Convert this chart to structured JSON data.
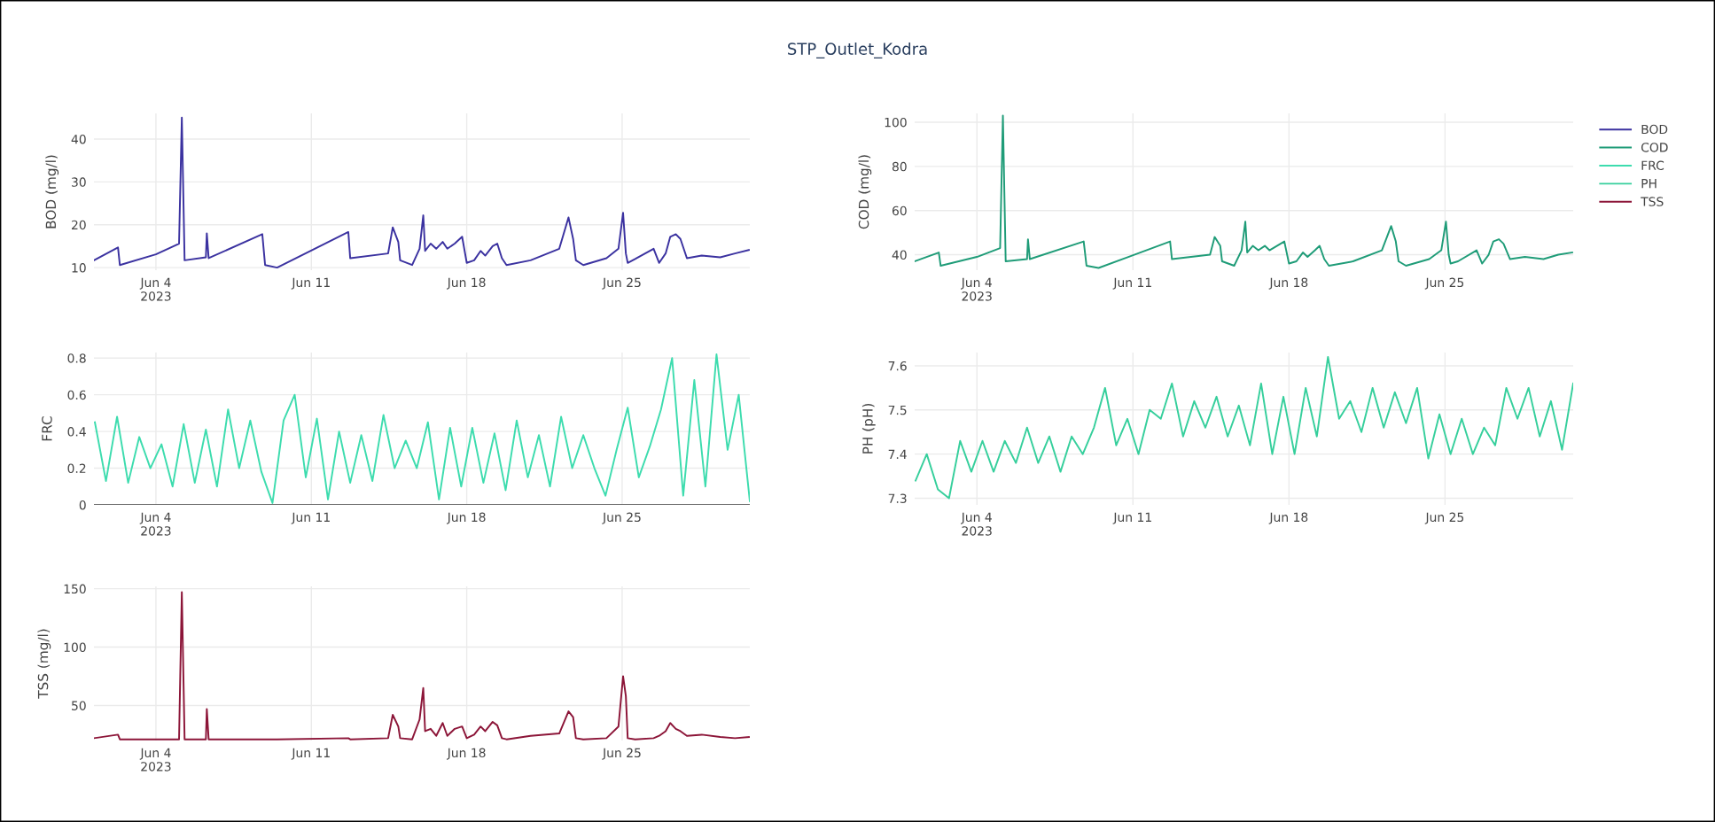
{
  "chart_data": [
    {
      "type": "line",
      "ylabel": "BOD (mg/l)",
      "grid": true,
      "xlim": [
        "2023-06-01T05:00",
        "2023-06-30T18:00"
      ],
      "xticks": [
        {
          "value": "2023-06-04",
          "label": "Jun 4\n2023"
        },
        {
          "value": "2023-06-11",
          "label": "Jun 11"
        },
        {
          "value": "2023-06-18",
          "label": "Jun 18"
        },
        {
          "value": "2023-06-25",
          "label": "Jun 25"
        }
      ],
      "ylim": [
        9.4,
        46
      ],
      "yticks": [
        10,
        20,
        30,
        40
      ],
      "x": [
        "2023-06-01T05:00",
        "2023-06-02T07:00",
        "2023-06-02T09:00",
        "2023-06-04T00:00",
        "2023-06-05T01:00",
        "2023-06-05T04:00",
        "2023-06-05T07:00",
        "2023-06-06T06:00",
        "2023-06-06T07:00",
        "2023-06-06T09:00",
        "2023-06-08T19:00",
        "2023-06-08T22:00",
        "2023-06-09T11:00",
        "2023-06-12T16:00",
        "2023-06-12T18:00",
        "2023-06-14T11:00",
        "2023-06-14T16:00",
        "2023-06-14T22:00",
        "2023-06-15T00:00",
        "2023-06-15T13:00",
        "2023-06-15T21:00",
        "2023-06-16T01:00",
        "2023-06-16T03:00",
        "2023-06-16T09:00",
        "2023-06-16T15:00",
        "2023-06-16T22:00",
        "2023-06-17T03:00",
        "2023-06-17T11:00",
        "2023-06-17T19:00",
        "2023-06-18T00:00",
        "2023-06-18T08:00",
        "2023-06-18T15:00",
        "2023-06-18T20:00",
        "2023-06-19T04:00",
        "2023-06-19T09:00",
        "2023-06-19T14:00",
        "2023-06-19T19:00",
        "2023-06-20T21:00",
        "2023-06-22T04:00",
        "2023-06-22T14:00",
        "2023-06-22T19:00",
        "2023-06-22T22:00",
        "2023-06-23T06:00",
        "2023-06-24T07:00",
        "2023-06-24T20:00",
        "2023-06-25T01:00",
        "2023-06-25T04:00",
        "2023-06-25T06:00",
        "2023-06-25T14:00",
        "2023-06-26T10:00",
        "2023-06-26T16:00",
        "2023-06-26T23:00",
        "2023-06-27T04:00",
        "2023-06-27T10:00",
        "2023-06-27T15:00",
        "2023-06-27T22:00",
        "2023-06-28T14:00",
        "2023-06-29T10:00",
        "2023-06-30T02:00",
        "2023-06-30T17:00"
      ],
      "series": [
        {
          "name": "BOD",
          "color": "#3b32a0",
          "values": [
            11.7,
            14.7,
            10.6,
            13.1,
            15.6,
            45,
            11.7,
            12.4,
            18,
            12.2,
            17.8,
            10.6,
            10,
            18.3,
            12.2,
            13.3,
            19.4,
            16,
            11.7,
            10.6,
            14.4,
            22.2,
            13.9,
            15.6,
            14.4,
            16,
            14.4,
            15.6,
            17.2,
            11.1,
            11.7,
            13.9,
            12.8,
            15,
            15.6,
            12.2,
            10.6,
            11.7,
            14.4,
            21.7,
            16.7,
            11.7,
            10.6,
            12.2,
            14.4,
            22.8,
            13.3,
            11.1,
            12,
            14.4,
            11.1,
            13.3,
            17.2,
            17.8,
            16.7,
            12.2,
            12.8,
            12.4,
            13.3,
            14.1
          ]
        }
      ]
    },
    {
      "type": "line",
      "title": "STP_Outlet_Kodra",
      "ylabel": "COD (mg/l)",
      "grid": true,
      "legend": "top right",
      "xlim": [
        "2023-06-01T05:00",
        "2023-06-30T18:00"
      ],
      "xticks": [
        {
          "value": "2023-06-04",
          "label": "Jun 4\n2023"
        },
        {
          "value": "2023-06-11",
          "label": "Jun 11"
        },
        {
          "value": "2023-06-18",
          "label": "Jun 18"
        },
        {
          "value": "2023-06-25",
          "label": "Jun 25"
        }
      ],
      "ylim": [
        33,
        104
      ],
      "yticks": [
        40,
        60,
        80,
        100
      ],
      "x": [
        "2023-06-01T05:00",
        "2023-06-02T07:00",
        "2023-06-02T09:00",
        "2023-06-04T00:00",
        "2023-06-05T01:00",
        "2023-06-05T04:00",
        "2023-06-05T07:00",
        "2023-06-06T06:00",
        "2023-06-06T07:00",
        "2023-06-06T09:00",
        "2023-06-08T19:00",
        "2023-06-08T22:00",
        "2023-06-09T11:00",
        "2023-06-12T16:00",
        "2023-06-12T18:00",
        "2023-06-14T11:00",
        "2023-06-14T16:00",
        "2023-06-14T22:00",
        "2023-06-15T00:00",
        "2023-06-15T13:00",
        "2023-06-15T21:00",
        "2023-06-16T01:00",
        "2023-06-16T03:00",
        "2023-06-16T09:00",
        "2023-06-16T15:00",
        "2023-06-16T22:00",
        "2023-06-17T03:00",
        "2023-06-17T11:00",
        "2023-06-17T19:00",
        "2023-06-18T00:00",
        "2023-06-18T08:00",
        "2023-06-18T15:00",
        "2023-06-18T20:00",
        "2023-06-19T04:00",
        "2023-06-19T09:00",
        "2023-06-19T14:00",
        "2023-06-19T19:00",
        "2023-06-20T21:00",
        "2023-06-22T04:00",
        "2023-06-22T14:00",
        "2023-06-22T19:00",
        "2023-06-22T22:00",
        "2023-06-23T06:00",
        "2023-06-24T07:00",
        "2023-06-24T20:00",
        "2023-06-25T01:00",
        "2023-06-25T04:00",
        "2023-06-25T06:00",
        "2023-06-25T14:00",
        "2023-06-26T10:00",
        "2023-06-26T16:00",
        "2023-06-26T23:00",
        "2023-06-27T04:00",
        "2023-06-27T10:00",
        "2023-06-27T15:00",
        "2023-06-27T22:00",
        "2023-06-28T14:00",
        "2023-06-29T10:00",
        "2023-06-30T02:00",
        "2023-06-30T17:00"
      ],
      "series": [
        {
          "name": "COD",
          "color": "#1f9c78",
          "values": [
            37,
            41,
            35,
            39,
            43,
            103,
            37,
            38,
            47,
            38,
            46,
            35,
            34,
            46,
            38,
            40,
            48,
            44,
            37,
            35,
            42,
            55,
            41,
            44,
            42,
            44,
            42,
            44,
            46,
            36,
            37,
            41,
            39,
            42,
            44,
            38,
            35,
            37,
            42,
            53,
            46,
            37,
            35,
            38,
            42,
            55,
            40,
            36,
            37,
            42,
            36,
            40,
            46,
            47,
            45,
            38,
            39,
            38,
            40,
            41
          ]
        }
      ]
    },
    {
      "type": "line",
      "ylabel": "FRC",
      "grid": true,
      "xlim": [
        "2023-06-01T05:00",
        "2023-06-30T18:00"
      ],
      "xticks": [
        {
          "value": "2023-06-04",
          "label": "Jun 4\n2023"
        },
        {
          "value": "2023-06-11",
          "label": "Jun 11"
        },
        {
          "value": "2023-06-18",
          "label": "Jun 18"
        },
        {
          "value": "2023-06-25",
          "label": "Jun 25"
        }
      ],
      "ylim": [
        0,
        0.83
      ],
      "yticks": [
        0,
        0.2,
        0.4,
        0.6,
        0.8
      ],
      "x": [
        "2023-06-01T06:00",
        "2023-06-01T18:00",
        "2023-06-02T06:00",
        "2023-06-02T18:00",
        "2023-06-03T06:00",
        "2023-06-03T18:00",
        "2023-06-04T06:00",
        "2023-06-04T18:00",
        "2023-06-05T06:00",
        "2023-06-05T18:00",
        "2023-06-06T06:00",
        "2023-06-06T18:00",
        "2023-06-07T06:00",
        "2023-06-07T18:00",
        "2023-06-08T06:00",
        "2023-06-08T18:00",
        "2023-06-09T06:00",
        "2023-06-09T18:00",
        "2023-06-10T06:00",
        "2023-06-10T18:00",
        "2023-06-11T06:00",
        "2023-06-11T18:00",
        "2023-06-12T06:00",
        "2023-06-12T18:00",
        "2023-06-13T06:00",
        "2023-06-13T18:00",
        "2023-06-14T06:00",
        "2023-06-14T18:00",
        "2023-06-15T06:00",
        "2023-06-15T18:00",
        "2023-06-16T06:00",
        "2023-06-16T18:00",
        "2023-06-17T06:00",
        "2023-06-17T18:00",
        "2023-06-18T06:00",
        "2023-06-18T18:00",
        "2023-06-19T06:00",
        "2023-06-19T18:00",
        "2023-06-20T06:00",
        "2023-06-20T18:00",
        "2023-06-21T06:00",
        "2023-06-21T18:00",
        "2023-06-22T06:00",
        "2023-06-22T18:00",
        "2023-06-23T06:00",
        "2023-06-23T18:00",
        "2023-06-24T06:00",
        "2023-06-24T18:00",
        "2023-06-25T06:00",
        "2023-06-25T18:00",
        "2023-06-26T06:00",
        "2023-06-26T18:00",
        "2023-06-27T06:00",
        "2023-06-27T18:00",
        "2023-06-28T06:00",
        "2023-06-28T18:00",
        "2023-06-29T06:00",
        "2023-06-29T18:00",
        "2023-06-30T06:00",
        "2023-06-30T18:00"
      ],
      "series": [
        {
          "name": "FRC",
          "color": "#3ddcae",
          "values": [
            0.45,
            0.13,
            0.48,
            0.12,
            0.37,
            0.2,
            0.33,
            0.1,
            0.44,
            0.12,
            0.41,
            0.1,
            0.52,
            0.2,
            0.46,
            0.18,
            0.01,
            0.46,
            0.6,
            0.15,
            0.47,
            0.03,
            0.4,
            0.12,
            0.38,
            0.13,
            0.49,
            0.2,
            0.35,
            0.2,
            0.45,
            0.03,
            0.42,
            0.1,
            0.42,
            0.12,
            0.39,
            0.08,
            0.46,
            0.15,
            0.38,
            0.1,
            0.48,
            0.2,
            0.38,
            0.2,
            0.05,
            0.3,
            0.53,
            0.15,
            0.32,
            0.52,
            0.8,
            0.05,
            0.68,
            0.1,
            0.82,
            0.3,
            0.6,
            0.02
          ]
        }
      ]
    },
    {
      "type": "line",
      "ylabel": "PH (pH)",
      "grid": true,
      "xlim": [
        "2023-06-01T05:00",
        "2023-06-30T18:00"
      ],
      "xticks": [
        {
          "value": "2023-06-04",
          "label": "Jun 4\n2023"
        },
        {
          "value": "2023-06-11",
          "label": "Jun 11"
        },
        {
          "value": "2023-06-18",
          "label": "Jun 18"
        },
        {
          "value": "2023-06-25",
          "label": "Jun 25"
        }
      ],
      "ylim": [
        7.285,
        7.63
      ],
      "yticks": [
        7.3,
        7.4,
        7.5,
        7.6
      ],
      "x": [
        "2023-06-01T06:00",
        "2023-06-01T18:00",
        "2023-06-02T06:00",
        "2023-06-02T18:00",
        "2023-06-03T06:00",
        "2023-06-03T18:00",
        "2023-06-04T06:00",
        "2023-06-04T18:00",
        "2023-06-05T06:00",
        "2023-06-05T18:00",
        "2023-06-06T06:00",
        "2023-06-06T18:00",
        "2023-06-07T06:00",
        "2023-06-07T18:00",
        "2023-06-08T06:00",
        "2023-06-08T18:00",
        "2023-06-09T06:00",
        "2023-06-09T18:00",
        "2023-06-10T06:00",
        "2023-06-10T18:00",
        "2023-06-11T06:00",
        "2023-06-11T18:00",
        "2023-06-12T06:00",
        "2023-06-12T18:00",
        "2023-06-13T06:00",
        "2023-06-13T18:00",
        "2023-06-14T06:00",
        "2023-06-14T18:00",
        "2023-06-15T06:00",
        "2023-06-15T18:00",
        "2023-06-16T06:00",
        "2023-06-16T18:00",
        "2023-06-17T06:00",
        "2023-06-17T18:00",
        "2023-06-18T06:00",
        "2023-06-18T18:00",
        "2023-06-19T06:00",
        "2023-06-19T18:00",
        "2023-06-20T06:00",
        "2023-06-20T18:00",
        "2023-06-21T06:00",
        "2023-06-21T18:00",
        "2023-06-22T06:00",
        "2023-06-22T18:00",
        "2023-06-23T06:00",
        "2023-06-23T18:00",
        "2023-06-24T06:00",
        "2023-06-24T18:00",
        "2023-06-25T06:00",
        "2023-06-25T18:00",
        "2023-06-26T06:00",
        "2023-06-26T18:00",
        "2023-06-27T06:00",
        "2023-06-27T18:00",
        "2023-06-28T06:00",
        "2023-06-28T18:00",
        "2023-06-29T06:00",
        "2023-06-29T18:00",
        "2023-06-30T06:00",
        "2023-06-30T18:00"
      ],
      "series": [
        {
          "name": "PH",
          "color": "#36cf9c",
          "values": [
            7.34,
            7.4,
            7.32,
            7.3,
            7.43,
            7.36,
            7.43,
            7.36,
            7.43,
            7.38,
            7.46,
            7.38,
            7.44,
            7.36,
            7.44,
            7.4,
            7.46,
            7.55,
            7.42,
            7.48,
            7.4,
            7.5,
            7.48,
            7.56,
            7.44,
            7.52,
            7.46,
            7.53,
            7.44,
            7.51,
            7.42,
            7.56,
            7.4,
            7.53,
            7.4,
            7.55,
            7.44,
            7.62,
            7.48,
            7.52,
            7.45,
            7.55,
            7.46,
            7.54,
            7.47,
            7.55,
            7.39,
            7.49,
            7.4,
            7.48,
            7.4,
            7.46,
            7.42,
            7.55,
            7.48,
            7.55,
            7.44,
            7.52,
            7.41,
            7.56
          ]
        }
      ]
    },
    {
      "type": "line",
      "ylabel": "TSS (mg/l)",
      "grid": true,
      "xlim": [
        "2023-06-01T05:00",
        "2023-06-30T18:00"
      ],
      "xticks": [
        {
          "value": "2023-06-04",
          "label": "Jun 4\n2023"
        },
        {
          "value": "2023-06-11",
          "label": "Jun 11"
        },
        {
          "value": "2023-06-18",
          "label": "Jun 18"
        },
        {
          "value": "2023-06-25",
          "label": "Jun 25"
        }
      ],
      "ylim": [
        20,
        152
      ],
      "yticks": [
        50,
        100,
        150
      ],
      "x": [
        "2023-06-01T05:00",
        "2023-06-02T07:00",
        "2023-06-02T09:00",
        "2023-06-04T00:00",
        "2023-06-05T01:00",
        "2023-06-05T04:00",
        "2023-06-05T07:00",
        "2023-06-06T06:00",
        "2023-06-06T07:00",
        "2023-06-06T09:00",
        "2023-06-08T19:00",
        "2023-06-08T22:00",
        "2023-06-09T11:00",
        "2023-06-12T16:00",
        "2023-06-12T18:00",
        "2023-06-14T11:00",
        "2023-06-14T16:00",
        "2023-06-14T22:00",
        "2023-06-15T00:00",
        "2023-06-15T13:00",
        "2023-06-15T21:00",
        "2023-06-16T01:00",
        "2023-06-16T03:00",
        "2023-06-16T09:00",
        "2023-06-16T15:00",
        "2023-06-16T22:00",
        "2023-06-17T03:00",
        "2023-06-17T11:00",
        "2023-06-17T19:00",
        "2023-06-18T00:00",
        "2023-06-18T08:00",
        "2023-06-18T15:00",
        "2023-06-18T20:00",
        "2023-06-19T04:00",
        "2023-06-19T09:00",
        "2023-06-19T14:00",
        "2023-06-19T19:00",
        "2023-06-20T21:00",
        "2023-06-22T04:00",
        "2023-06-22T14:00",
        "2023-06-22T19:00",
        "2023-06-22T22:00",
        "2023-06-23T06:00",
        "2023-06-24T07:00",
        "2023-06-24T20:00",
        "2023-06-25T01:00",
        "2023-06-25T04:00",
        "2023-06-25T06:00",
        "2023-06-25T14:00",
        "2023-06-26T10:00",
        "2023-06-26T16:00",
        "2023-06-26T23:00",
        "2023-06-27T04:00",
        "2023-06-27T10:00",
        "2023-06-27T15:00",
        "2023-06-27T22:00",
        "2023-06-28T14:00",
        "2023-06-29T10:00",
        "2023-06-30T02:00",
        "2023-06-30T17:00"
      ],
      "series": [
        {
          "name": "TSS",
          "color": "#8c1538",
          "values": [
            22,
            25,
            21,
            21,
            21,
            147,
            21,
            21,
            47,
            21,
            21,
            21,
            21,
            22,
            21,
            22,
            42,
            32,
            22,
            21,
            38,
            65,
            28,
            30,
            24,
            35,
            24,
            30,
            32,
            22,
            25,
            32,
            28,
            36,
            33,
            22,
            21,
            24,
            26,
            45,
            40,
            22,
            21,
            22,
            32,
            75,
            58,
            22,
            21,
            22,
            24,
            28,
            35,
            30,
            28,
            24,
            25,
            23,
            22,
            23
          ]
        }
      ]
    }
  ]
}
